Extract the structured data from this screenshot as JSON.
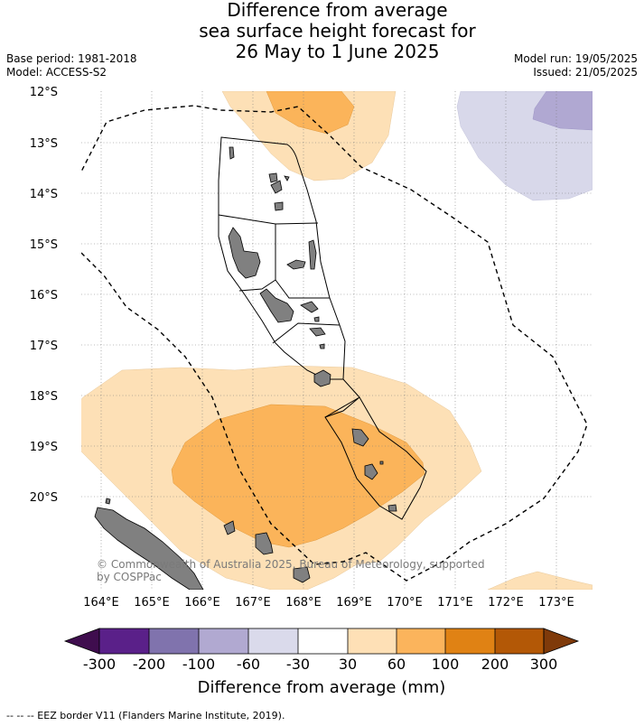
{
  "header": {
    "title_lines": [
      "Difference from average",
      "sea surface height forecast for",
      "26 May to 1 June 2025"
    ],
    "base_period": "Base period: 1981-2018",
    "model": "Model: ACCESS-S2",
    "model_run": "Model run: 19/05/2025",
    "issued": "Issued: 21/05/2025"
  },
  "map": {
    "lat_labels": [
      "12°S",
      "13°S",
      "14°S",
      "15°S",
      "16°S",
      "17°S",
      "18°S",
      "19°S",
      "20°S"
    ],
    "lon_labels": [
      "164°E",
      "165°E",
      "166°E",
      "167°E",
      "168°E",
      "169°E",
      "170°E",
      "171°E",
      "172°E",
      "173°E"
    ],
    "gridlines": true,
    "copyright_lines": [
      "© Commonwealth of Australia 2025, Bureau of Meteorology, supported",
      "by COSPPac"
    ],
    "colors": {
      "land": "#808080",
      "light_orange": "#fde0b6",
      "mid_orange": "#fbb45a",
      "light_lavender": "#d8d8ea",
      "mid_lavender": "#b0a8d2"
    }
  },
  "colorbar": {
    "title": "Difference from average (mm)",
    "tick_labels": [
      "-300",
      "-200",
      "-100",
      "-60",
      "-30",
      "30",
      "60",
      "100",
      "200",
      "300"
    ],
    "under_color": "#3f0d4e",
    "over_color": "#7f3a0a",
    "segments": [
      {
        "color": "#5a2089",
        "range": "-300 to -200"
      },
      {
        "color": "#8073ad",
        "range": "-200 to -100"
      },
      {
        "color": "#b1a9d1",
        "range": "-100 to -60"
      },
      {
        "color": "#dadaeb",
        "range": "-60 to -30"
      },
      {
        "color": "#ffffff",
        "range": "-30 to 30"
      },
      {
        "color": "#fee0b6",
        "range": "30 to 60"
      },
      {
        "color": "#fbb45c",
        "range": "60 to 100"
      },
      {
        "color": "#e08214",
        "range": "100 to 200"
      },
      {
        "color": "#b35806",
        "range": "200 to 300"
      }
    ]
  },
  "footnote": "--  --  -- EEZ border V11 (Flanders Marine Institute, 2019)."
}
